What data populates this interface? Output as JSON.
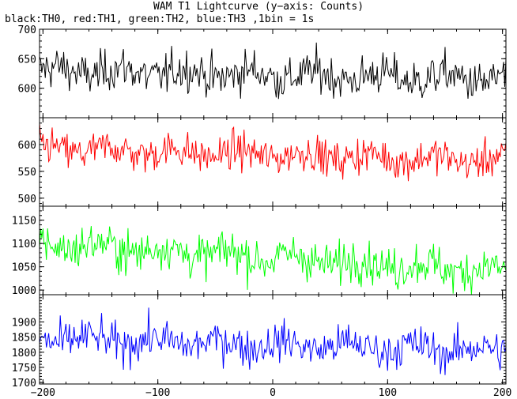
{
  "title": "WAM T1 Lightcurve (y−axis: Counts)",
  "subtitle": "black:TH0, red:TH1, green:TH2, blue:TH3 ,1bin = 1s",
  "chart_data": {
    "type": "line",
    "x_range": [
      -203,
      203
    ],
    "x_ticks": [
      -200,
      -100,
      0,
      100,
      200
    ],
    "x_tick_labels": [
      "−200",
      "−100",
      "0",
      "100",
      "200"
    ],
    "bin_seconds": 1,
    "panels": [
      {
        "name": "TH0",
        "color": "#000000",
        "ylim": [
          550,
          700
        ],
        "y_ticks": [
          600,
          650,
          700
        ],
        "y_tick_labels": [
          "600",
          "650",
          "700"
        ],
        "level_start": 630,
        "level_end": 615,
        "scatter": 25
      },
      {
        "name": "TH1",
        "color": "#ff0000",
        "ylim": [
          485,
          650
        ],
        "y_ticks": [
          500,
          550,
          600
        ],
        "y_tick_labels": [
          "500",
          "550",
          "600"
        ],
        "level_start": 592,
        "level_end": 570,
        "scatter": 24
      },
      {
        "name": "TH2",
        "color": "#00ff00",
        "ylim": [
          990,
          1180
        ],
        "y_ticks": [
          1000,
          1050,
          1100,
          1150
        ],
        "y_tick_labels": [
          "1000",
          "1050",
          "1100",
          "1150"
        ],
        "level_start": 1100,
        "level_end": 1040,
        "scatter": 32
      },
      {
        "name": "TH3",
        "color": "#0000ff",
        "ylim": [
          1695,
          1990
        ],
        "y_ticks": [
          1700,
          1750,
          1800,
          1850,
          1900
        ],
        "y_tick_labels": [
          "1700",
          "1750",
          "1800",
          "1850",
          "1900"
        ],
        "level_start": 1845,
        "level_end": 1805,
        "scatter": 45
      }
    ]
  }
}
